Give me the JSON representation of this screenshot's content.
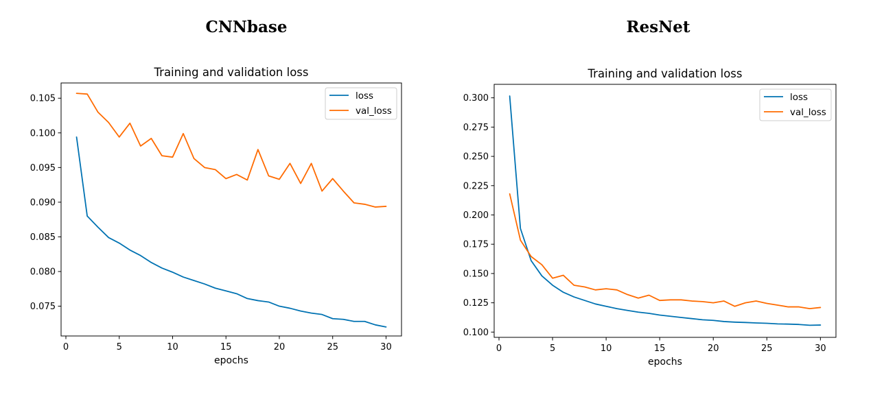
{
  "panels": [
    {
      "heading": "CNNbase"
    },
    {
      "heading": "ResNet"
    }
  ],
  "colors": {
    "loss": "#0072b2",
    "val_loss": "#ff6b00"
  },
  "chart_data": [
    {
      "type": "line",
      "title": "Training and validation loss",
      "xlabel": "epochs",
      "ylabel": "",
      "xlim": [
        -0.45,
        31.45
      ],
      "ylim": [
        0.0707,
        0.1072
      ],
      "xticks": [
        0,
        5,
        10,
        15,
        20,
        25,
        30
      ],
      "xtick_labels": [
        "0",
        "5",
        "10",
        "15",
        "20",
        "25",
        "30"
      ],
      "yticks": [
        0.075,
        0.08,
        0.085,
        0.09,
        0.095,
        0.1,
        0.105
      ],
      "ytick_labels": [
        "0.075",
        "0.080",
        "0.085",
        "0.090",
        "0.095",
        "0.100",
        "0.105"
      ],
      "legend": "top-right",
      "grid": false,
      "x": [
        1,
        2,
        3,
        4,
        5,
        6,
        7,
        8,
        9,
        10,
        11,
        12,
        13,
        14,
        15,
        16,
        17,
        18,
        19,
        20,
        21,
        22,
        23,
        24,
        25,
        26,
        27,
        28,
        29,
        30
      ],
      "series": [
        {
          "name": "loss",
          "color": "#0072b2",
          "values": [
            0.0994,
            0.088,
            0.0864,
            0.0849,
            0.0841,
            0.0831,
            0.0823,
            0.0813,
            0.0805,
            0.0799,
            0.0792,
            0.0787,
            0.0782,
            0.0776,
            0.0772,
            0.0768,
            0.0761,
            0.0758,
            0.0756,
            0.075,
            0.0747,
            0.0743,
            0.074,
            0.0738,
            0.0732,
            0.0731,
            0.0728,
            0.0728,
            0.0723,
            0.072
          ]
        },
        {
          "name": "val_loss",
          "color": "#ff6b00",
          "values": [
            0.1057,
            0.1056,
            0.103,
            0.1015,
            0.0994,
            0.1014,
            0.0981,
            0.0992,
            0.0967,
            0.0965,
            0.0999,
            0.0963,
            0.095,
            0.0947,
            0.0934,
            0.094,
            0.0932,
            0.0976,
            0.0938,
            0.0933,
            0.0956,
            0.0927,
            0.0956,
            0.0916,
            0.0934,
            0.0916,
            0.0899,
            0.0897,
            0.0893,
            0.0894
          ]
        }
      ]
    },
    {
      "type": "line",
      "title": "Training and validation loss",
      "xlabel": "epochs",
      "ylabel": "",
      "xlim": [
        -0.45,
        31.45
      ],
      "ylim": [
        0.0955,
        0.3115
      ],
      "xticks": [
        0,
        5,
        10,
        15,
        20,
        25,
        30
      ],
      "xtick_labels": [
        "0",
        "5",
        "10",
        "15",
        "20",
        "25",
        "30"
      ],
      "yticks": [
        0.1,
        0.125,
        0.15,
        0.175,
        0.2,
        0.225,
        0.25,
        0.275,
        0.3
      ],
      "ytick_labels": [
        "0.100",
        "0.125",
        "0.150",
        "0.175",
        "0.200",
        "0.225",
        "0.250",
        "0.275",
        "0.300"
      ],
      "legend": "top-right",
      "grid": false,
      "x": [
        1,
        2,
        3,
        4,
        5,
        6,
        7,
        8,
        9,
        10,
        11,
        12,
        13,
        14,
        15,
        16,
        17,
        18,
        19,
        20,
        21,
        22,
        23,
        24,
        25,
        26,
        27,
        28,
        29,
        30
      ],
      "series": [
        {
          "name": "loss",
          "color": "#0072b2",
          "values": [
            0.3015,
            0.1885,
            0.161,
            0.148,
            0.14,
            0.134,
            0.13,
            0.127,
            0.124,
            0.122,
            0.12,
            0.1185,
            0.117,
            0.116,
            0.1145,
            0.1135,
            0.1125,
            0.1115,
            0.1105,
            0.11,
            0.109,
            0.1085,
            0.1082,
            0.1078,
            0.1075,
            0.107,
            0.1068,
            0.1065,
            0.1058,
            0.106
          ]
        },
        {
          "name": "val_loss",
          "color": "#ff6b00",
          "values": [
            0.218,
            0.1785,
            0.1645,
            0.1575,
            0.146,
            0.1485,
            0.14,
            0.1385,
            0.136,
            0.137,
            0.136,
            0.132,
            0.129,
            0.1315,
            0.127,
            0.1275,
            0.1275,
            0.1265,
            0.126,
            0.125,
            0.1265,
            0.122,
            0.125,
            0.1265,
            0.1245,
            0.123,
            0.1215,
            0.1215,
            0.12,
            0.121
          ]
        }
      ]
    }
  ]
}
